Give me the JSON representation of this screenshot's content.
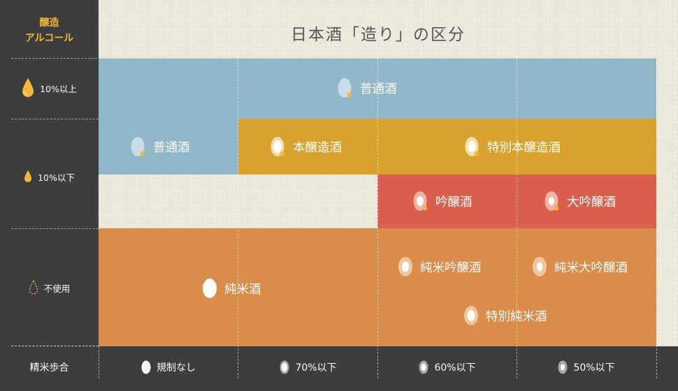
{
  "header": {
    "alcohol_label_line1": "醸造",
    "alcohol_label_line2": "アルコール",
    "title": "日本酒「造り」の区分"
  },
  "alcohol_rows": [
    {
      "label": "10%以上",
      "icon": "drop-large-icon"
    },
    {
      "label": "10%以下",
      "icon": "drop-small-icon"
    },
    {
      "label": "不使用",
      "icon": "drop-outline-icon"
    }
  ],
  "polishing_ratio": {
    "label": "精米歩合",
    "columns": [
      {
        "label": "規制なし",
        "icon": "rice-grain-full-icon"
      },
      {
        "label": "70%以下",
        "icon": "rice-grain-70-icon"
      },
      {
        "label": "60%以下",
        "icon": "rice-grain-60-icon"
      },
      {
        "label": "50%以下",
        "icon": "rice-grain-50-icon"
      }
    ]
  },
  "categories": {
    "futsushu_top": "普通酒",
    "futsushu_mid": "普通酒",
    "honjozo": "本醸造酒",
    "tokubetsu_honjozo": "特別本醸造酒",
    "ginjo": "吟醸酒",
    "daiginjo": "大吟醸酒",
    "junmai": "純米酒",
    "junmai_ginjo": "純米吟醸酒",
    "junmai_daiginjo": "純米大吟醸酒",
    "tokubetsu_junmai": "特別純米酒"
  },
  "colors": {
    "futsushu": "#91b7c8",
    "honjozo": "#d9a22e",
    "ginjo": "#d9604d",
    "junmai": "#da8c4b",
    "accent": "#f0b63c",
    "sidebar": "#3d3d3d"
  }
}
